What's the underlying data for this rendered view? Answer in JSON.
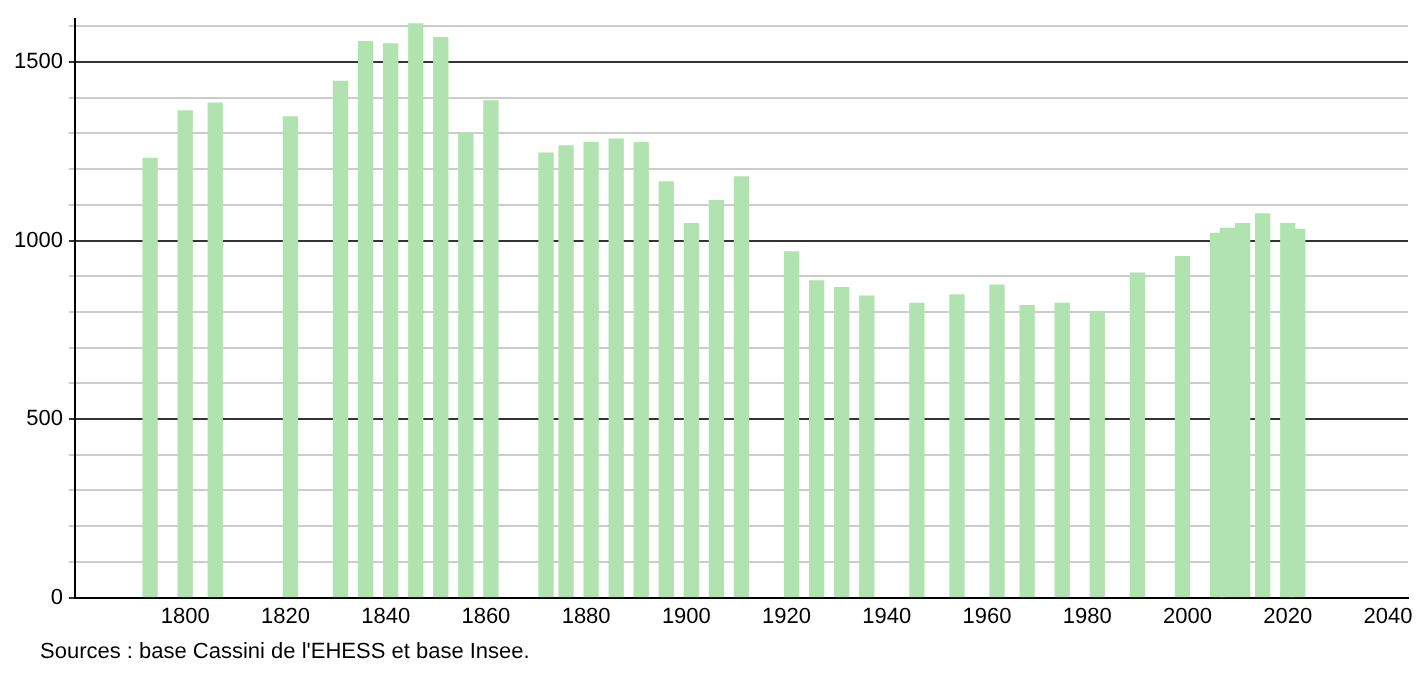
{
  "chart_data": {
    "type": "bar",
    "x": [
      1793,
      1800,
      1806,
      1821,
      1831,
      1836,
      1841,
      1846,
      1851,
      1856,
      1861,
      1872,
      1876,
      1881,
      1886,
      1891,
      1896,
      1901,
      1906,
      1911,
      1921,
      1926,
      1931,
      1936,
      1946,
      1954,
      1962,
      1968,
      1975,
      1982,
      1990,
      1999,
      2006,
      2008,
      2011,
      2015,
      2020,
      2022
    ],
    "values": [
      1230,
      1363,
      1385,
      1346,
      1446,
      1557,
      1551,
      1607,
      1568,
      1300,
      1391,
      1245,
      1265,
      1274,
      1284,
      1274,
      1164,
      1047,
      1112,
      1178,
      968,
      887,
      868,
      844,
      824,
      848,
      875,
      818,
      824,
      800,
      909,
      955,
      1020,
      1034,
      1047,
      1075,
      1047,
      1031
    ],
    "color": "#b0e3b0",
    "xlim": [
      1778,
      2044
    ],
    "xticks": [
      1800,
      1820,
      1840,
      1860,
      1880,
      1900,
      1920,
      1940,
      1960,
      1980,
      2000,
      2020,
      2040
    ],
    "ylim": [
      0,
      1620
    ],
    "yticks": [
      0,
      {
        "value": 100,
        "label": null
      },
      {
        "value": 200,
        "label": null
      },
      {
        "value": 300,
        "label": null
      },
      {
        "value": 400,
        "label": null
      },
      500,
      {
        "value": 600,
        "label": null
      },
      {
        "value": 700,
        "label": null
      },
      {
        "value": 800,
        "label": null
      },
      {
        "value": 900,
        "label": null
      },
      1000,
      {
        "value": 1100,
        "label": null
      },
      {
        "value": 1200,
        "label": null
      },
      {
        "value": 1300,
        "label": null
      },
      {
        "value": 1400,
        "label": null
      },
      1500,
      {
        "value": 1600,
        "label": null
      }
    ],
    "grid": "y",
    "legend": false,
    "annotations": [
      "Sources : base Cassini de l'EHESS et base Insee."
    ]
  }
}
